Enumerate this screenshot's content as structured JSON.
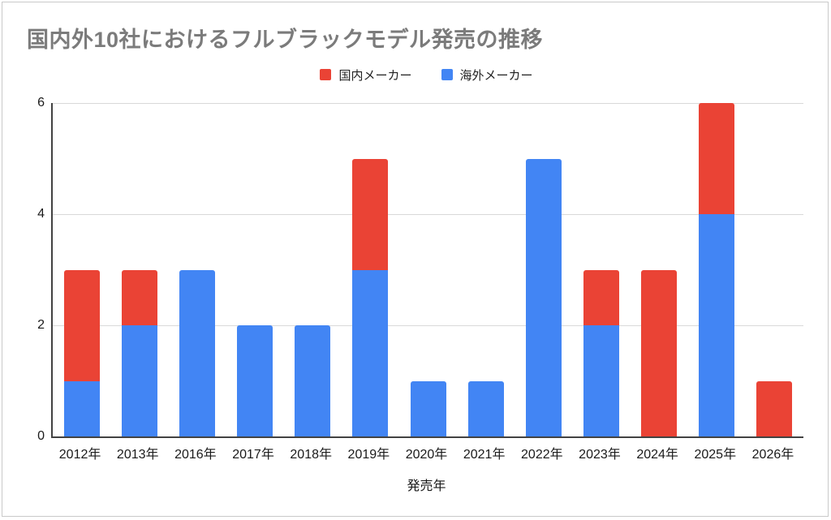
{
  "title": "国内外10社におけるフルブラックモデル発売の推移",
  "legend": [
    {
      "label": "国内メーカー",
      "color": "#EA4335"
    },
    {
      "label": "海外メーカー",
      "color": "#4285F4"
    }
  ],
  "chart_data": {
    "type": "bar",
    "stacked": true,
    "title": "国内外10社におけるフルブラックモデル発売の推移",
    "xlabel": "発売年",
    "ylabel": "",
    "ylim": [
      0,
      6
    ],
    "yticks": [
      0,
      2,
      4,
      6
    ],
    "grid": true,
    "legend_position": "top",
    "categories": [
      "2012年",
      "2013年",
      "2016年",
      "2017年",
      "2018年",
      "2019年",
      "2020年",
      "2021年",
      "2022年",
      "2023年",
      "2024年",
      "2025年",
      "2026年"
    ],
    "series": [
      {
        "name": "国内メーカー",
        "color": "#EA4335",
        "stack_order": "top",
        "values": [
          2,
          1,
          0,
          0,
          0,
          2,
          0,
          0,
          0,
          1,
          3,
          2,
          1
        ]
      },
      {
        "name": "海外メーカー",
        "color": "#4285F4",
        "stack_order": "bottom",
        "values": [
          1,
          2,
          3,
          2,
          2,
          3,
          1,
          1,
          5,
          2,
          0,
          4,
          0
        ]
      }
    ]
  },
  "colors": {
    "domestic_red": "#EA4335",
    "overseas_blue": "#4285F4",
    "title_gray": "#7b7b7b",
    "axis_line": "#424242",
    "gridline": "#d9d9d9",
    "tick_text": "#1a1a1a",
    "frame_border": "#c9c9c9",
    "background": "#ffffff"
  }
}
